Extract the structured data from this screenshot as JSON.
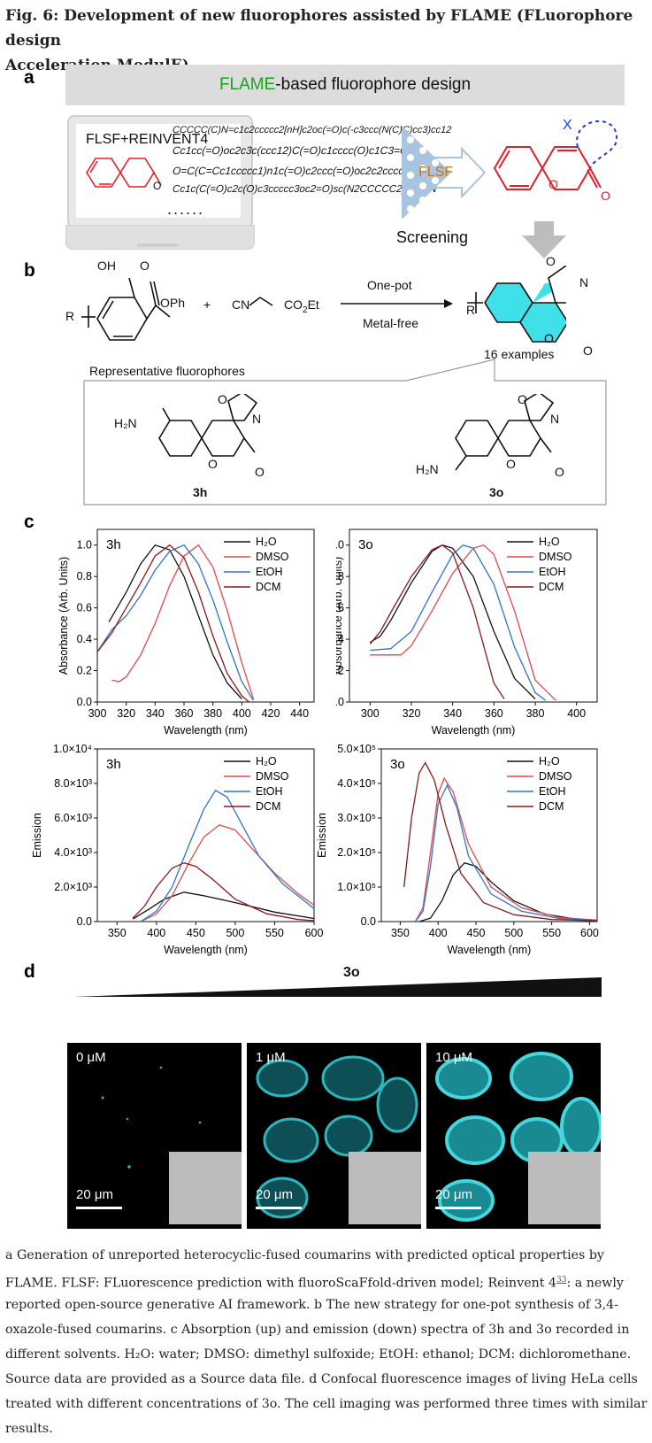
{
  "figure": {
    "title": "Fig. 6: Development of new fluorophores assisted by FLAME (FLuorophore design Acceleration ModulE).",
    "title_line1": "Fig. 6: Development of new fluorophores assisted by FLAME (FLuorophore design",
    "title_line2": "Acceleration ModulE)."
  },
  "panel_a": {
    "label": "a",
    "banner_highlight": "FLAME",
    "banner_rest": "-based fluorophore design",
    "laptop_title": "FLSF+REINVENT4",
    "smiles": [
      "CCCCC(C)N=c1c2ccccc2[nH]c2oc(=O)c(-c3ccc(N(C)C)cc3)cc12",
      "Cc1cc(=O)oc2c3c(ccc12)C(=O)c1cccc(O)c1C3=O",
      "O=C(C=Cc1ccccc1)n1c(=O)c2ccc(=O)oc2c2ccccc21",
      "Cc1c(C(=O)c2c(O)c3ccccc3oc2=O)sc(N2CCCCC2)c1C#N"
    ],
    "ellipsis": "......",
    "filter_label": "FLSF",
    "screening_label": "Screening",
    "substituent_label": "X"
  },
  "panel_b": {
    "label": "b",
    "reactant1_oh": "OH",
    "reactant1_o": "O",
    "reactant1_oph": "OPh",
    "reactant1_r": "R",
    "plus": "+",
    "reactant2_cn": "CN",
    "reactant2_ester": "CO",
    "reactant2_ester_sub": "2",
    "reactant2_ester_end": "Et",
    "condition_top": "One-pot",
    "condition_bottom": "Metal-free",
    "product_r": "R",
    "product_n": "N",
    "product_o": "O",
    "examples": "16 examples",
    "representative_title": "Representative fluorophores",
    "compounds": [
      {
        "id": "3h",
        "amine": "H₂N"
      },
      {
        "id": "3o",
        "amine": "H₂N"
      }
    ]
  },
  "panel_c": {
    "label": "c"
  },
  "chart_data": [
    {
      "type": "line",
      "panel_tag": "3h",
      "xlabel": "Wavelength (nm)",
      "ylabel": "Absorbance (Arb. Units)",
      "xlim": [
        300,
        450
      ],
      "ylim": [
        0,
        1.1
      ],
      "xticks": [
        "300",
        "320",
        "340",
        "360",
        "380",
        "400",
        "420",
        "440"
      ],
      "yticks": [
        "0.0",
        "0.2",
        "0.4",
        "0.6",
        "0.8",
        "1.0"
      ],
      "legend_position": "top-right",
      "series": [
        {
          "name": "H₂O",
          "color": "#111111",
          "x": [
            308,
            320,
            330,
            340,
            350,
            360,
            370,
            380,
            390,
            400
          ],
          "y": [
            0.51,
            0.7,
            0.88,
            1.0,
            0.97,
            0.8,
            0.55,
            0.3,
            0.12,
            0.02
          ]
        },
        {
          "name": "DMSO",
          "color": "#e0494b",
          "x": [
            310,
            315,
            320,
            330,
            340,
            350,
            360,
            370,
            380,
            390,
            400,
            408
          ],
          "y": [
            0.14,
            0.13,
            0.16,
            0.3,
            0.5,
            0.74,
            0.93,
            1.0,
            0.86,
            0.58,
            0.25,
            0.02
          ]
        },
        {
          "name": "EtOH",
          "color": "#2f73c8",
          "x": [
            300,
            310,
            320,
            330,
            340,
            350,
            360,
            370,
            380,
            390,
            400,
            408
          ],
          "y": [
            0.32,
            0.46,
            0.55,
            0.68,
            0.84,
            0.96,
            1.0,
            0.88,
            0.65,
            0.38,
            0.13,
            0.01
          ]
        },
        {
          "name": "DCM",
          "color": "#8b1a1a",
          "x": [
            300,
            310,
            320,
            330,
            340,
            350,
            360,
            370,
            380,
            390,
            400,
            405
          ],
          "y": [
            0.32,
            0.44,
            0.6,
            0.76,
            0.93,
            1.0,
            0.92,
            0.7,
            0.42,
            0.18,
            0.04,
            0.0
          ]
        }
      ]
    },
    {
      "type": "line",
      "panel_tag": "3o",
      "xlabel": "Wavelength (nm)",
      "ylabel": "Absorbance (Arb. Units)",
      "xlim": [
        290,
        410
      ],
      "ylim": [
        0,
        1.1
      ],
      "xticks": [
        "300",
        "320",
        "340",
        "360",
        "380",
        "400"
      ],
      "yticks": [
        "0.0",
        "0.2",
        "0.4",
        "0.6",
        "0.8",
        "1.0"
      ],
      "legend_position": "top-right",
      "series": [
        {
          "name": "H₂O",
          "color": "#111111",
          "x": [
            300,
            305,
            310,
            320,
            330,
            335,
            340,
            350,
            360,
            370,
            380
          ],
          "y": [
            0.38,
            0.42,
            0.52,
            0.76,
            0.96,
            1.0,
            0.98,
            0.8,
            0.45,
            0.15,
            0.02
          ]
        },
        {
          "name": "DMSO",
          "color": "#e0494b",
          "x": [
            300,
            310,
            315,
            320,
            330,
            340,
            350,
            355,
            360,
            370,
            380,
            390
          ],
          "y": [
            0.3,
            0.3,
            0.3,
            0.36,
            0.58,
            0.82,
            0.98,
            1.0,
            0.94,
            0.58,
            0.14,
            0.01
          ]
        },
        {
          "name": "EtOH",
          "color": "#2f73c8",
          "x": [
            300,
            310,
            320,
            330,
            340,
            345,
            350,
            360,
            370,
            380,
            385
          ],
          "y": [
            0.33,
            0.34,
            0.45,
            0.7,
            0.94,
            1.0,
            0.98,
            0.75,
            0.35,
            0.06,
            0.01
          ]
        },
        {
          "name": "DCM",
          "color": "#8b1a1a",
          "x": [
            300,
            305,
            310,
            320,
            330,
            335,
            340,
            350,
            360,
            365
          ],
          "y": [
            0.37,
            0.45,
            0.57,
            0.8,
            0.97,
            1.0,
            0.95,
            0.6,
            0.12,
            0.02
          ]
        }
      ]
    },
    {
      "type": "line",
      "panel_tag": "3h",
      "xlabel": "Wavelength (nm)",
      "ylabel": "Emission",
      "xlim": [
        325,
        600
      ],
      "ylim": [
        0,
        10000
      ],
      "xticks": [
        "350",
        "400",
        "450",
        "500",
        "550",
        "600"
      ],
      "yticks": [
        "0.0",
        "2.0×10³",
        "4.0×10³",
        "6.0×10³",
        "8.0×10³",
        "1.0×10⁴"
      ],
      "legend_position": "top-right",
      "series": [
        {
          "name": "H₂O",
          "color": "#111111",
          "x": [
            370,
            390,
            410,
            435,
            460,
            500,
            550,
            600
          ],
          "y": [
            150,
            700,
            1300,
            1700,
            1500,
            1100,
            550,
            180
          ]
        },
        {
          "name": "DMSO",
          "color": "#e0494b",
          "x": [
            380,
            400,
            420,
            440,
            460,
            480,
            500,
            520,
            550,
            580,
            600
          ],
          "y": [
            0,
            450,
            1500,
            3300,
            4900,
            5600,
            5300,
            4300,
            2800,
            1600,
            950
          ]
        },
        {
          "name": "EtOH",
          "color": "#2f73c8",
          "x": [
            380,
            400,
            420,
            440,
            460,
            475,
            490,
            510,
            530,
            560,
            600
          ],
          "y": [
            0,
            600,
            2000,
            4300,
            6500,
            7600,
            7200,
            5500,
            3800,
            2200,
            750
          ]
        },
        {
          "name": "DCM",
          "color": "#8b1a1a",
          "x": [
            370,
            385,
            400,
            420,
            435,
            450,
            470,
            500,
            540,
            580,
            600
          ],
          "y": [
            200,
            900,
            2000,
            3100,
            3400,
            3200,
            2500,
            1300,
            450,
            120,
            50
          ]
        }
      ]
    },
    {
      "type": "line",
      "panel_tag": "3o",
      "xlabel": "Wavelength (nm)",
      "ylabel": "Emission",
      "xlim": [
        325,
        610
      ],
      "ylim": [
        0,
        500000
      ],
      "xticks": [
        "350",
        "400",
        "450",
        "500",
        "550",
        "600"
      ],
      "yticks": [
        "0.0",
        "1.0×10⁵",
        "2.0×10⁵",
        "3.0×10⁵",
        "4.0×10⁵",
        "5.0×10⁵"
      ],
      "legend_position": "top-right",
      "series": [
        {
          "name": "H₂O",
          "color": "#111111",
          "x": [
            375,
            390,
            405,
            420,
            435,
            450,
            470,
            500,
            540,
            580,
            610
          ],
          "y": [
            0,
            10000,
            60000,
            135000,
            170000,
            160000,
            115000,
            60000,
            22000,
            8000,
            4000
          ]
        },
        {
          "name": "DMSO",
          "color": "#e0494b",
          "x": [
            370,
            380,
            390,
            400,
            408,
            420,
            440,
            470,
            510,
            560,
            610
          ],
          "y": [
            0,
            40000,
            200000,
            370000,
            415000,
            375000,
            225000,
            100000,
            40000,
            12000,
            4000
          ]
        },
        {
          "name": "EtOH",
          "color": "#2f73c8",
          "x": [
            370,
            380,
            390,
            400,
            412,
            425,
            440,
            470,
            510,
            560,
            610
          ],
          "y": [
            0,
            30000,
            160000,
            340000,
            395000,
            330000,
            190000,
            80000,
            30000,
            9000,
            3000
          ]
        },
        {
          "name": "DCM",
          "color": "#8b1a1a",
          "x": [
            355,
            365,
            375,
            383,
            395,
            410,
            430,
            460,
            500,
            550,
            610
          ],
          "y": [
            100000,
            300000,
            430000,
            460000,
            410000,
            280000,
            140000,
            55000,
            20000,
            6000,
            2000
          ]
        }
      ]
    }
  ],
  "panel_d": {
    "label": "d",
    "compound": "3o",
    "images": [
      {
        "conc": "0 μM",
        "scale": "20 μm"
      },
      {
        "conc": "1 μM",
        "scale": "20 μm"
      },
      {
        "conc": "10 μM",
        "scale": "20 μm"
      }
    ]
  },
  "caption": {
    "lines": [
      "a Generation of unreported heterocyclic-fused coumarins with predicted optical properties by",
      "FLAME. FLSF: FLuorescence prediction with fluoroScaFfold-driven model; Reinvent 4",
      "reported open-source generative AI framework. b The new strategy for one-pot synthesis of 3,4-",
      "oxazole-fused coumarins. c Absorption (up) and emission (down) spectra of 3h and 3o recorded in",
      "different solvents. H₂O: water; DMSO: dimethyl sulfoxide; EtOH: ethanol; DCM: dichloromethane.",
      "Source data are provided as a Source data file. d Confocal fluorescence images of living HeLa cells",
      "treated with different concentrations of 3o. The cell imaging was performed three times with similar",
      "results."
    ],
    "ref": "33",
    "ref_tail": ": a newly"
  },
  "colors": {
    "accent_green": "#1ea01e",
    "chem_red": "#e0202a",
    "cyan": "#3fe0e8",
    "flsf_orange": "#c8741b"
  }
}
